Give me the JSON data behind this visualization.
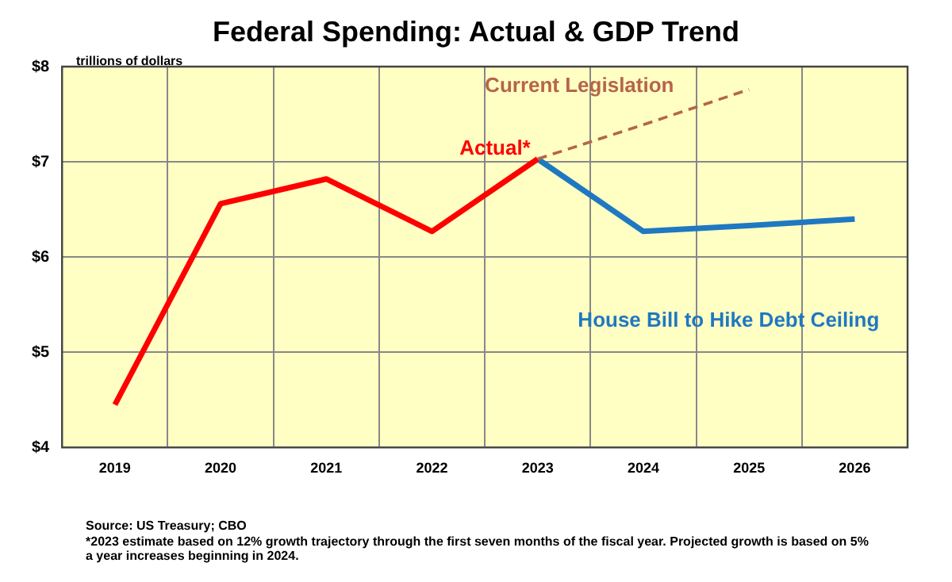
{
  "chart_data": {
    "type": "line",
    "title": "Federal Spending: Actual & GDP Trend",
    "ylabel": "trillions of dollars",
    "categories": [
      "2019",
      "2020",
      "2021",
      "2022",
      "2023",
      "2024",
      "2025",
      "2026"
    ],
    "series": [
      {
        "name": "Actual*",
        "color": "#ff0000",
        "values": [
          4.45,
          6.56,
          6.82,
          6.27,
          7.03,
          null,
          null,
          null
        ]
      },
      {
        "name": "Current Legislation",
        "color": "#b5654a",
        "line_style": "dashed",
        "values": [
          null,
          null,
          null,
          null,
          7.03,
          7.39,
          7.76,
          null
        ]
      },
      {
        "name": "House Bill to Hike Debt Ceiling",
        "color": "#1f78c1",
        "values": [
          null,
          null,
          null,
          null,
          7.03,
          6.27,
          6.33,
          6.4
        ]
      }
    ],
    "ylim": [
      4,
      8
    ],
    "yticks": [
      {
        "value": 4,
        "label": "$4"
      },
      {
        "value": 5,
        "label": "$5"
      },
      {
        "value": 6,
        "label": "$6"
      },
      {
        "value": 7,
        "label": "$7"
      },
      {
        "value": 8,
        "label": "$8"
      }
    ],
    "grid": true,
    "legend": false,
    "marker": "none",
    "annotations": [
      "Source: US Treasury; CBO",
      "*2023 estimate based on 12% growth trajectory through the first seven months of the fiscal year. Projected growth is based on 5% a year increases beginning in 2024."
    ]
  }
}
